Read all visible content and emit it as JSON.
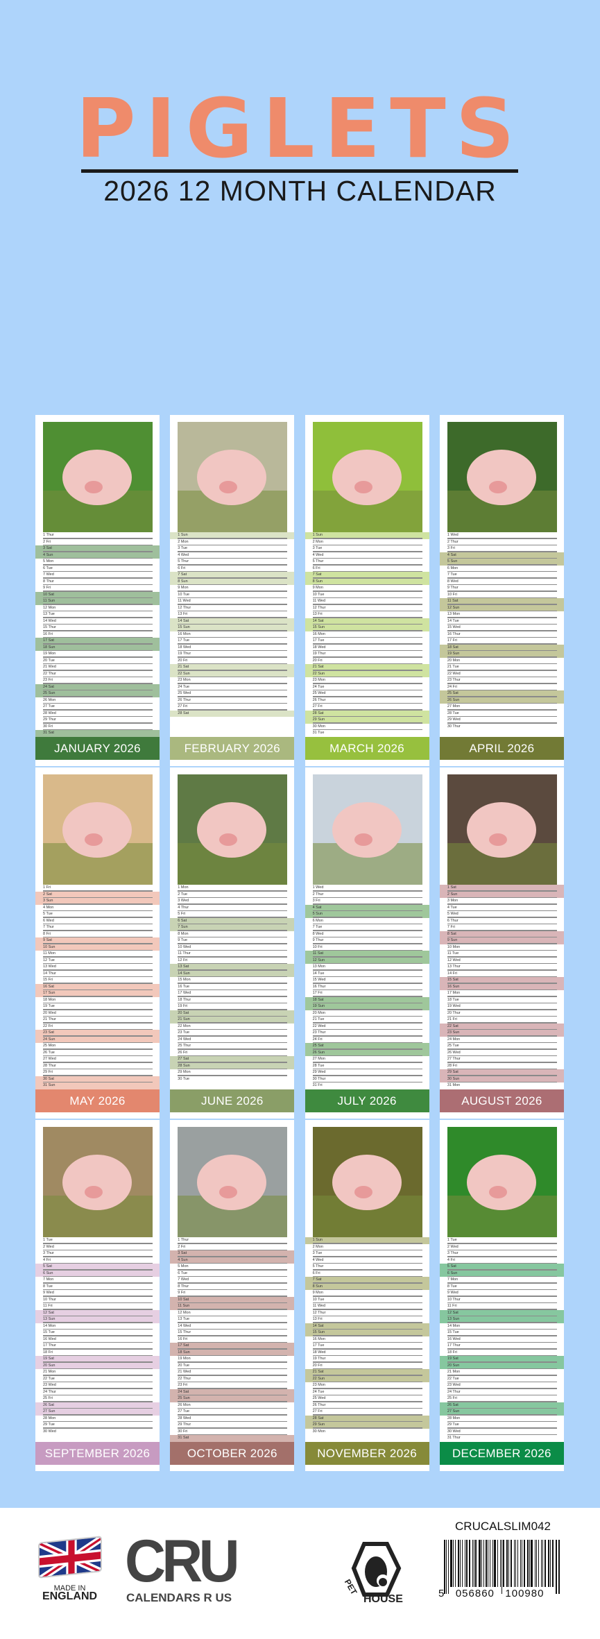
{
  "header": {
    "title": "PIGLETS",
    "subtitle": "2026 12 MONTH CALENDAR",
    "title_color": "#ef8b6b"
  },
  "weekdays": [
    "Mon",
    "Tue",
    "Wed",
    "Thur",
    "Fri",
    "Sat",
    "Sun"
  ],
  "months": [
    {
      "label": "JANUARY 2026",
      "first_weekday": "Thur",
      "days": 31,
      "color": "#3f7a3c",
      "band": "#9fbf9c",
      "photo_bg": "#4f8f33"
    },
    {
      "label": "FEBRUARY 2026",
      "first_weekday": "Sun",
      "days": 28,
      "color": "#aab87f",
      "band": "#dbe3c6",
      "photo_bg": "#b9b89a"
    },
    {
      "label": "MARCH 2026",
      "first_weekday": "Sun",
      "days": 31,
      "color": "#97c03e",
      "band": "#cfe3a0",
      "photo_bg": "#8fbf3a"
    },
    {
      "label": "APRIL 2026",
      "first_weekday": "Wed",
      "days": 30,
      "color": "#727a35",
      "band": "#c4c79b",
      "photo_bg": "#3d6a2a"
    },
    {
      "label": "MAY 2026",
      "first_weekday": "Fri",
      "days": 31,
      "color": "#e3876e",
      "band": "#f2c8bb",
      "photo_bg": "#d9b98a"
    },
    {
      "label": "JUNE 2026",
      "first_weekday": "Mon",
      "days": 30,
      "color": "#8a9e67",
      "band": "#c8d3b4",
      "photo_bg": "#5f7a45"
    },
    {
      "label": "JULY 2026",
      "first_weekday": "Wed",
      "days": 31,
      "color": "#3f8a3f",
      "band": "#9fc79b",
      "photo_bg": "#c9d3dc"
    },
    {
      "label": "AUGUST 2026",
      "first_weekday": "Sat",
      "days": 31,
      "color": "#ac6e73",
      "band": "#d9b5b8",
      "photo_bg": "#5b4a3e"
    },
    {
      "label": "SEPTEMBER 2026",
      "first_weekday": "Tue",
      "days": 30,
      "color": "#c79bc1",
      "band": "#e6cfe2",
      "photo_bg": "#a08a62"
    },
    {
      "label": "OCTOBER 2026",
      "first_weekday": "Thur",
      "days": 31,
      "color": "#a3706a",
      "band": "#d3b3ae",
      "photo_bg": "#9aa0a0"
    },
    {
      "label": "NOVEMBER 2026",
      "first_weekday": "Sun",
      "days": 30,
      "color": "#868a39",
      "band": "#c4c79b",
      "photo_bg": "#6b6a2e"
    },
    {
      "label": "DECEMBER 2026",
      "first_weekday": "Tue",
      "days": 31,
      "color": "#0b8c47",
      "band": "#86c79f",
      "photo_bg": "#2f8a2a"
    }
  ],
  "footer": {
    "made_in_line1": "MADE IN",
    "made_in_line2": "ENGLAND",
    "cru_logo": "CRU",
    "cru_tagline": "CALENDARS R US",
    "pet_house_word1": "PET",
    "pet_house_word2": "HOUSE",
    "product_code": "CRUCALSLIM042",
    "barcode_number": "5   056860   100980"
  }
}
